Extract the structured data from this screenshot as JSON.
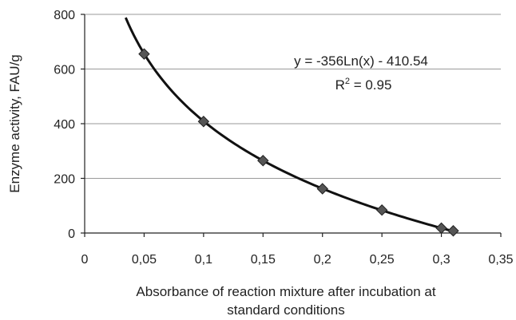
{
  "chart_data": {
    "type": "scatter",
    "title": "",
    "xlabel_lines": [
      "Absorbance of reaction mixture after incubation at",
      "standard conditions"
    ],
    "ylabel": "Enzyme activity, FAU/g",
    "xlim": [
      0,
      0.35
    ],
    "ylim": [
      0,
      800
    ],
    "x_ticks": [
      0,
      0.05,
      0.1,
      0.15,
      0.2,
      0.25,
      0.3,
      0.35
    ],
    "x_tick_labels": [
      "0",
      "0,05",
      "0,1",
      "0,15",
      "0,2",
      "0,25",
      "0,3",
      "0,35"
    ],
    "y_ticks": [
      0,
      200,
      400,
      600,
      800
    ],
    "y_tick_labels": [
      "0",
      "200",
      "400",
      "600",
      "800"
    ],
    "grid": "horizontal",
    "series": [
      {
        "x": [
          0.05,
          0.1,
          0.15,
          0.2,
          0.25,
          0.3,
          0.31
        ],
        "y": [
          655,
          408,
          265,
          162,
          84,
          18,
          8
        ]
      }
    ],
    "trendline": {
      "type": "log",
      "a": -356,
      "b": -410.54,
      "x_range": [
        0.0345,
        0.31
      ],
      "equation": "y = -356Ln(x) - 410.54",
      "r2_prefix": "R",
      "r2_sup": "2",
      "r2_value": " = 0.95"
    }
  }
}
